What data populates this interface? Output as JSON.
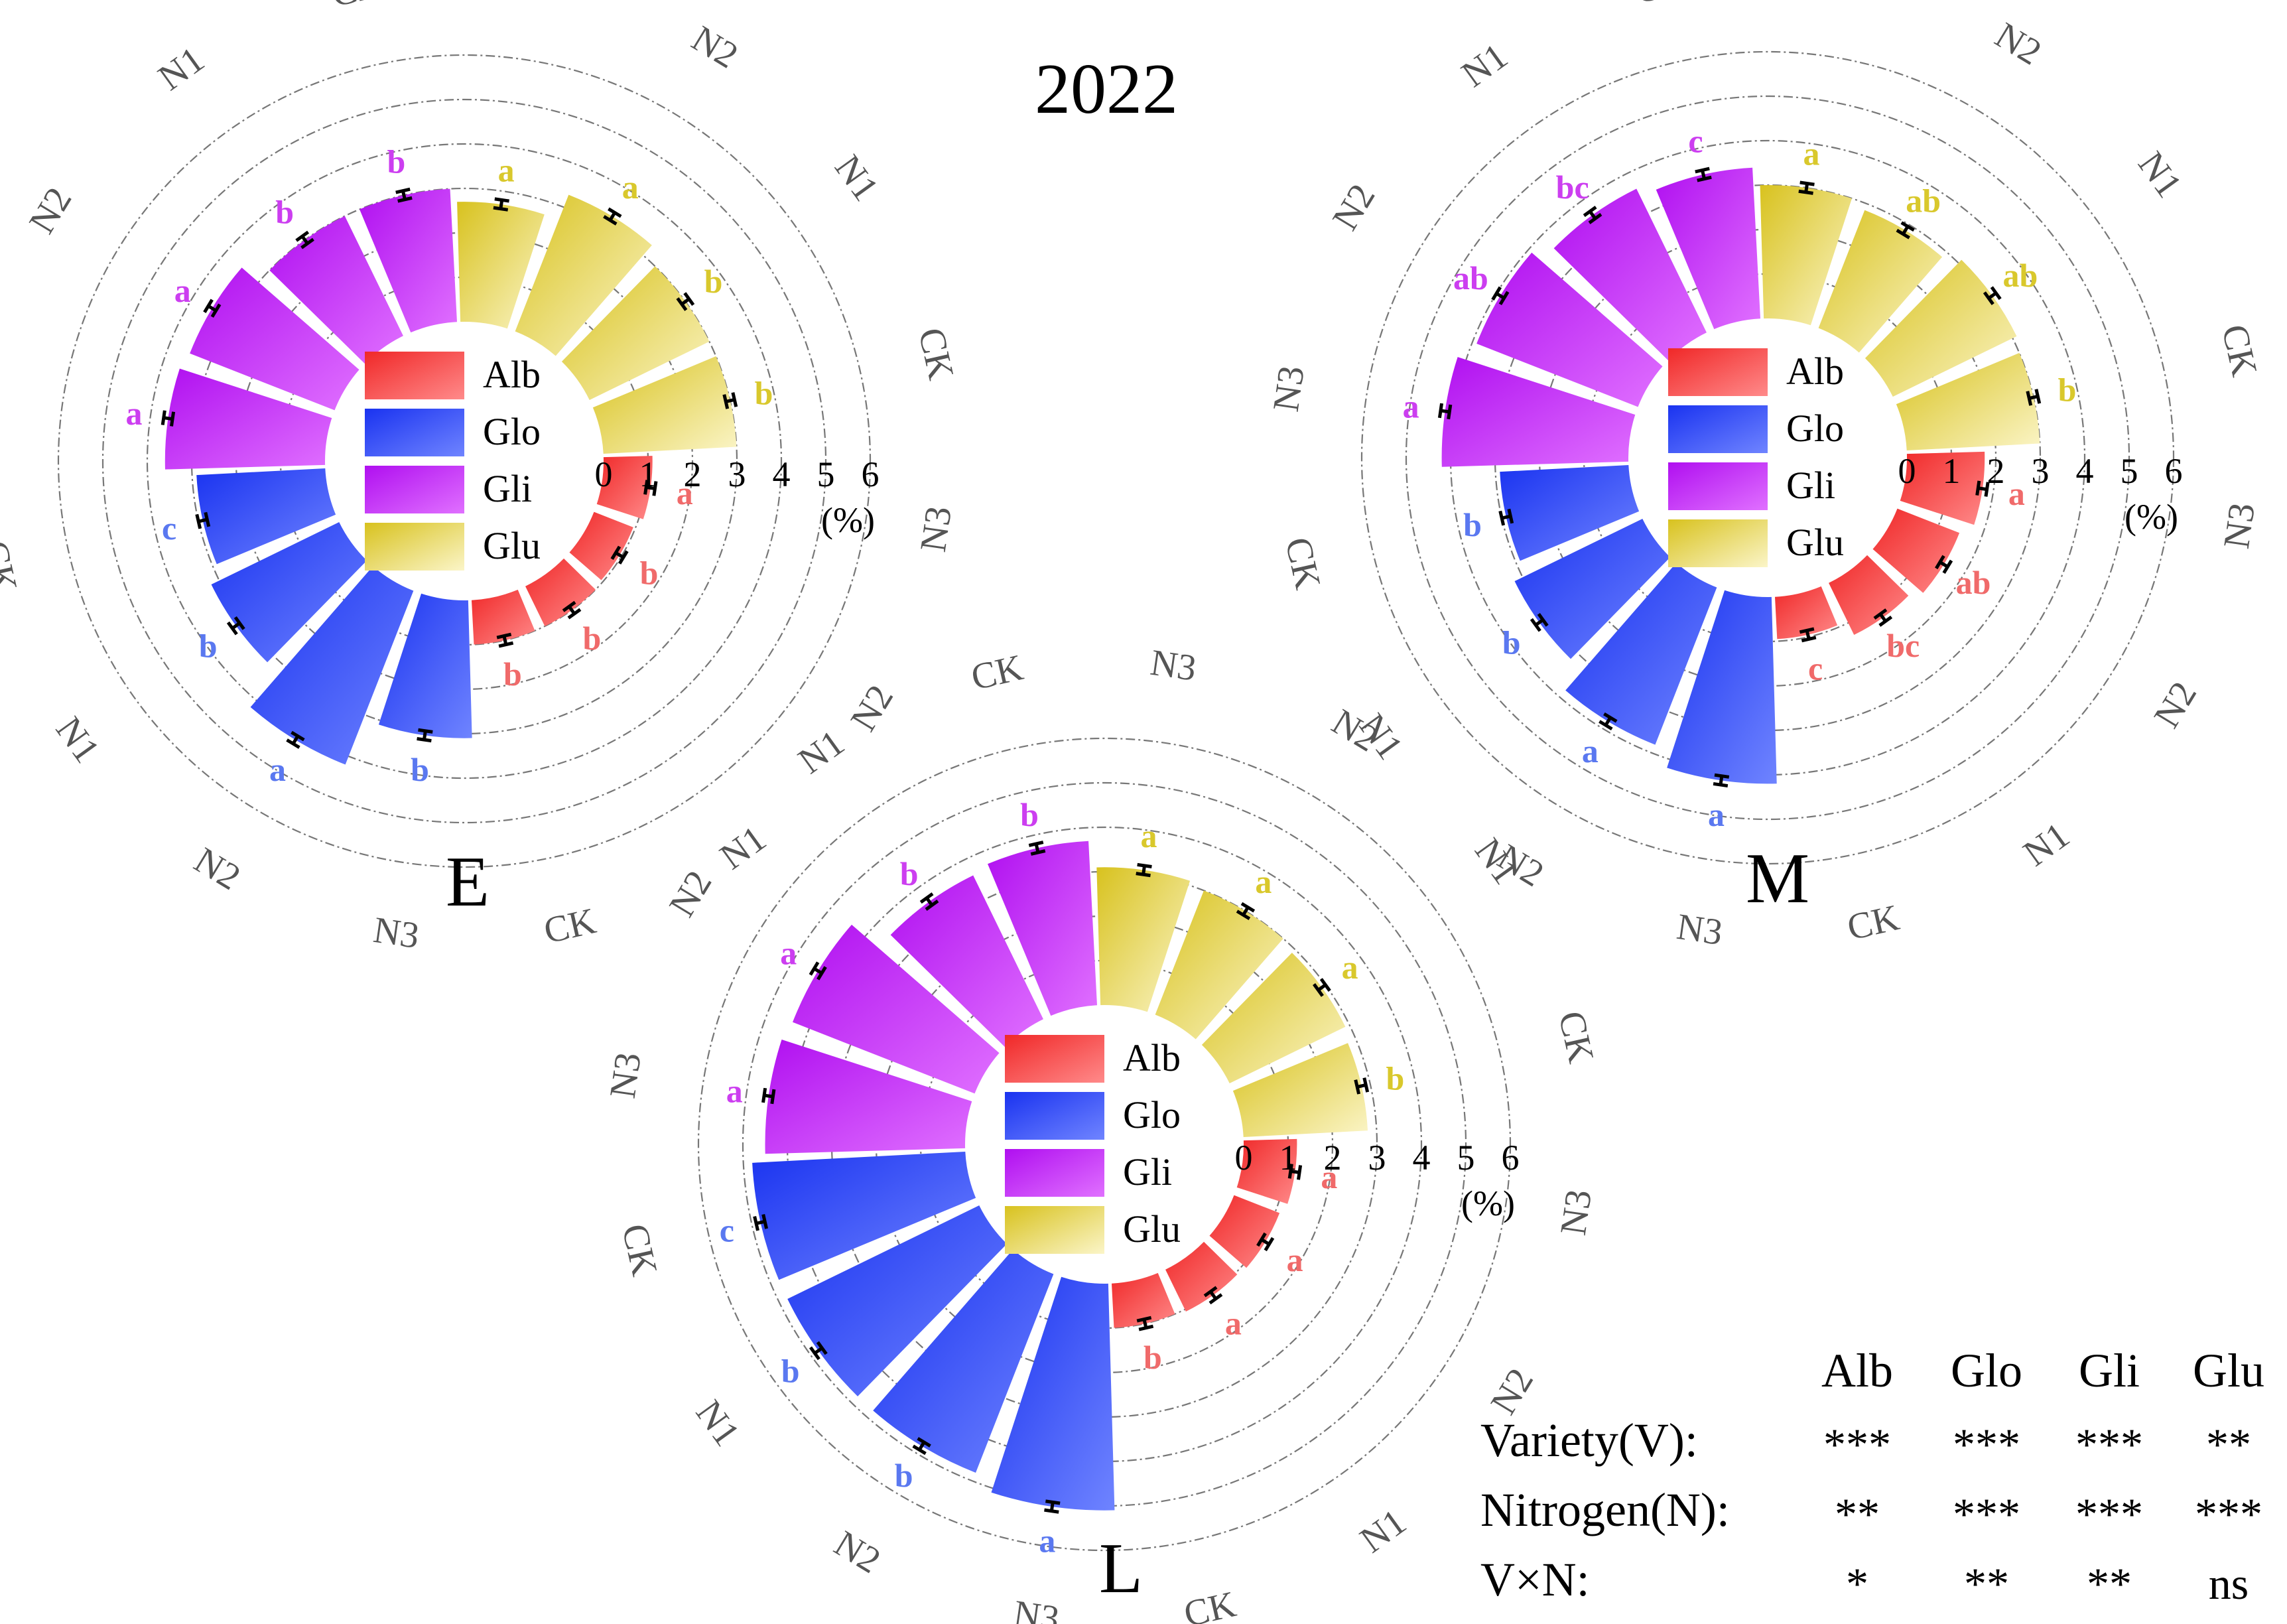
{
  "title": "2022",
  "colors": {
    "Alb": [
      "#f02828",
      "#ff8a8a"
    ],
    "Glo": [
      "#1a33f0",
      "#6f84ff"
    ],
    "Gli": [
      "#b00ff0",
      "#e070ff"
    ],
    "Glu": [
      "#d8c21e",
      "#fbf5c8"
    ],
    "label_Alb": "#f06a6a",
    "label_Glo": "#5a78f0",
    "label_Gli": "#cc3ef0",
    "label_Glu": "#d9c82c",
    "ring": "#777777",
    "text": "#000000",
    "outer_label": "#555555"
  },
  "legend": [
    "Alb",
    "Glo",
    "Gli",
    "Glu"
  ],
  "treatment_labels": [
    "CK",
    "N1",
    "N2",
    "N3"
  ],
  "axis": {
    "ticks": [
      "0",
      "1",
      "2",
      "3",
      "4",
      "5",
      "6"
    ],
    "unit": "(%)",
    "max": 6
  },
  "chart_data": [
    {
      "type": "bar",
      "polar": true,
      "panel": "E",
      "categories": [
        "CK",
        "N1",
        "N2",
        "N3"
      ],
      "series": [
        {
          "name": "Alb",
          "values": [
            1.0,
            1.0,
            0.95,
            1.1
          ],
          "letters": [
            "b",
            "b",
            "b",
            "a"
          ]
        },
        {
          "name": "Glo",
          "values": [
            2.9,
            3.2,
            4.2,
            3.1
          ],
          "letters": [
            "c",
            "b",
            "a",
            "b"
          ]
        },
        {
          "name": "Gli",
          "values": [
            3.0,
            3.0,
            3.5,
            3.6
          ],
          "letters": [
            "b",
            "b",
            "a",
            "a"
          ]
        },
        {
          "name": "Glu",
          "values": [
            3.0,
            3.0,
            3.3,
            2.7
          ],
          "letters": [
            "b",
            "b",
            "a",
            "a"
          ]
        }
      ],
      "ylim": [
        0,
        6
      ]
    },
    {
      "type": "bar",
      "polar": true,
      "panel": "M",
      "categories": [
        "CK",
        "N1",
        "N2",
        "N3"
      ],
      "series": [
        {
          "name": "Alb",
          "values": [
            0.95,
            1.3,
            1.5,
            1.75
          ],
          "letters": [
            "c",
            "bc",
            "ab",
            "a"
          ]
        },
        {
          "name": "Glo",
          "values": [
            2.9,
            3.2,
            3.8,
            4.2
          ],
          "letters": [
            "b",
            "b",
            "a",
            "a"
          ]
        },
        {
          "name": "Gli",
          "values": [
            3.4,
            3.6,
            3.9,
            4.2
          ],
          "letters": [
            "c",
            "bc",
            "ab",
            "a"
          ]
        },
        {
          "name": "Glu",
          "values": [
            3.0,
            3.1,
            2.85,
            3.0
          ],
          "letters": [
            "b",
            "ab",
            "ab",
            "a"
          ]
        }
      ],
      "ylim": [
        0,
        6
      ]
    },
    {
      "type": "bar",
      "polar": true,
      "panel": "L",
      "categories": [
        "CK",
        "N1",
        "N2",
        "N3"
      ],
      "series": [
        {
          "name": "Alb",
          "values": [
            1.0,
            1.05,
            1.1,
            1.2
          ],
          "letters": [
            "b",
            "a",
            "a",
            "a"
          ]
        },
        {
          "name": "Glo",
          "values": [
            4.8,
            4.8,
            4.8,
            5.1
          ],
          "letters": [
            "c",
            "b",
            "b",
            "a"
          ]
        },
        {
          "name": "Gli",
          "values": [
            3.7,
            3.6,
            4.4,
            4.5
          ],
          "letters": [
            "b",
            "b",
            "a",
            "a"
          ]
        },
        {
          "name": "Glu",
          "values": [
            2.8,
            2.9,
            3.0,
            3.1
          ],
          "letters": [
            "b",
            "a",
            "a",
            "a"
          ]
        }
      ],
      "ylim": [
        0,
        6
      ]
    }
  ],
  "stats_table": {
    "headers": [
      "Alb",
      "Glo",
      "Gli",
      "Glu"
    ],
    "rows": [
      {
        "label": "Variety(V):",
        "values": [
          "***",
          "***",
          "***",
          "**"
        ]
      },
      {
        "label": "Nitrogen(N):",
        "values": [
          "**",
          "***",
          "***",
          "***"
        ]
      },
      {
        "label": "V×N:",
        "values": [
          "*",
          "**",
          "**",
          "ns"
        ]
      }
    ]
  }
}
